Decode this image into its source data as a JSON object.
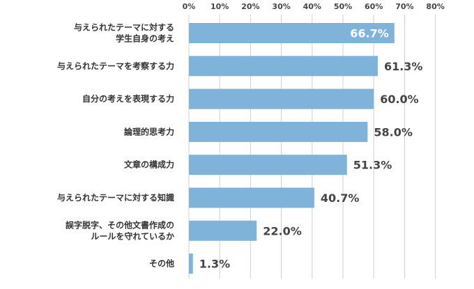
{
  "chart_data": {
    "type": "bar",
    "orientation": "horizontal",
    "categories": [
      [
        "与えられたテーマに対する",
        "学生自身の考え"
      ],
      [
        "与えられたテーマを考察する力"
      ],
      [
        "自分の考えを表現する力"
      ],
      [
        "論理的思考力"
      ],
      [
        "文章の構成力"
      ],
      [
        "与えられたテーマに対する知識"
      ],
      [
        "誤字脱字、その他文書作成の",
        "ルールを守れているか"
      ],
      [
        "その他"
      ]
    ],
    "values": [
      66.7,
      61.3,
      60.0,
      58.0,
      51.3,
      40.7,
      22.0,
      1.3
    ],
    "value_labels": [
      "66.7%",
      "61.3%",
      "60.0%",
      "58.0%",
      "51.3%",
      "40.7%",
      "22.0%",
      "1.3%"
    ],
    "xticks": [
      "0%",
      "10%",
      "20%",
      "30%",
      "40%",
      "50%",
      "60%",
      "70%",
      "80%"
    ],
    "xlim": [
      0,
      80
    ],
    "grid": true,
    "bar_color": "#80b3da",
    "title": "",
    "xlabel": "",
    "ylabel": ""
  }
}
